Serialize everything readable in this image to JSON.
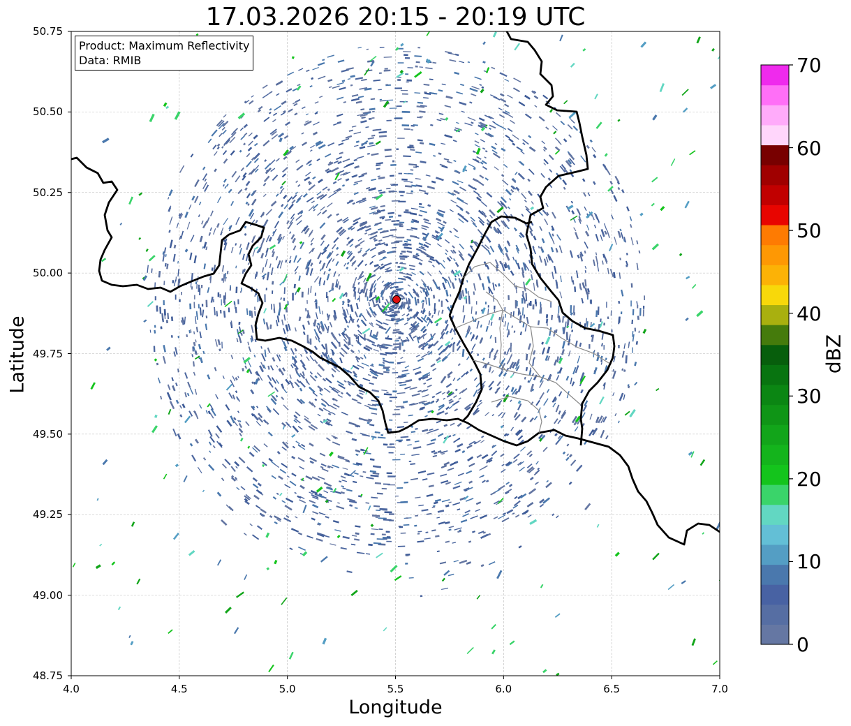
{
  "chart_data": {
    "type": "heatmap",
    "title": "17.03.2026 20:15 - 20:19 UTC",
    "xlabel": "Longitude",
    "ylabel": "Latitude",
    "xlim": [
      4.0,
      7.0
    ],
    "ylim": [
      48.75,
      50.75
    ],
    "x_ticks": [
      "4.0",
      "4.5",
      "5.0",
      "5.5",
      "6.0",
      "6.5",
      "7.0"
    ],
    "y_ticks": [
      "48.75",
      "49.00",
      "49.25",
      "49.50",
      "49.75",
      "50.00",
      "50.25",
      "50.50",
      "50.75"
    ],
    "grid": true,
    "info_box": [
      "Product: Maximum Reflectivity",
      "Data: RMIB"
    ],
    "radar_site": {
      "lon": 5.505,
      "lat": 49.915
    },
    "colorbar": {
      "label": "dBZ",
      "ticks": [
        "0",
        "10",
        "20",
        "30",
        "40",
        "50",
        "60",
        "70"
      ],
      "range": [
        0,
        70
      ],
      "step": 2.5,
      "colors": [
        "#6577a3",
        "#566ea3",
        "#4862a3",
        "#4a78ad",
        "#549ec4",
        "#63bfd6",
        "#62d7c2",
        "#3ad46a",
        "#14c41c",
        "#14b41c",
        "#12a51a",
        "#0f9516",
        "#0b8613",
        "#087410",
        "#075e0c",
        "#457b0c",
        "#a9b00f",
        "#f8d80a",
        "#fcb206",
        "#fe9804",
        "#fe7b02",
        "#e80500",
        "#c10000",
        "#a00000",
        "#780000",
        "#ffd6fb",
        "#ffabfa",
        "#ff6ff7",
        "#ef2aed"
      ]
    }
  }
}
